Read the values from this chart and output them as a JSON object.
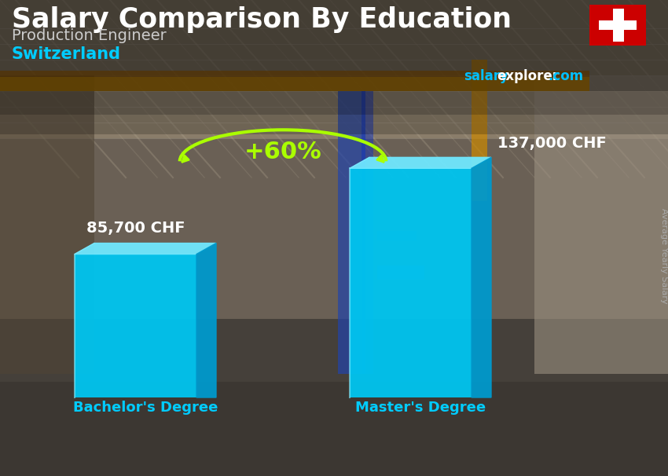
{
  "title": "Salary Comparison By Education",
  "subtitle_job": "Production Engineer",
  "subtitle_country": "Switzerland",
  "categories": [
    "Bachelor's Degree",
    "Master's Degree"
  ],
  "values": [
    85700,
    137000
  ],
  "value_labels": [
    "85,700 CHF",
    "137,000 CHF"
  ],
  "bar_color_main": "#00C5F0",
  "bar_color_top": "#70E8FF",
  "bar_color_side": "#0099CC",
  "pct_label": "+60%",
  "pct_color": "#AAFF00",
  "title_color": "#FFFFFF",
  "subtitle_job_color": "#CCCCCC",
  "subtitle_country_color": "#00CCFF",
  "value_label_color": "#FFFFFF",
  "xlabel_color": "#00CCFF",
  "site_color_salary": "#00BFFF",
  "site_color_rest": "#FFFFFF",
  "ylabel_text": "Average Yearly Salary",
  "ylabel_color": "#AAAAAA",
  "bg_top": "#7a7060",
  "bg_mid": "#5a5545",
  "bg_bottom": "#3a3530",
  "header_bg": "#00000066"
}
